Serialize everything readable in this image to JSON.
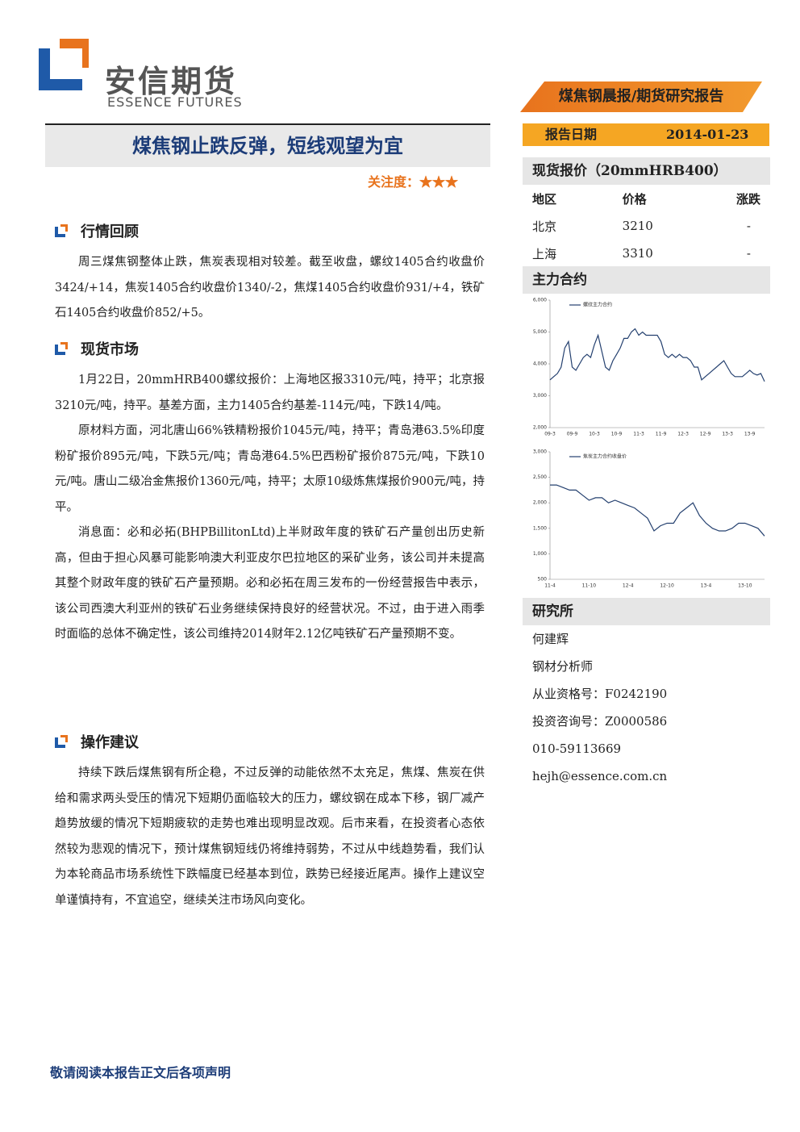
{
  "header": {
    "logo_cn": "安信期货",
    "logo_en": "ESSENCE FUTURES",
    "banner": "煤焦钢晨报/期货研究报告",
    "date_label": "报告日期",
    "date": "2014-01-23"
  },
  "title": "煤焦钢止跌反弹，短线观望为宜",
  "attention": "关注度：★★★",
  "sections": [
    {
      "heading": "行情回顾",
      "paragraphs": [
        "周三煤焦钢整体止跌，焦炭表现相对较差。截至收盘，螺纹1405合约收盘价3424/+14，焦炭1405合约收盘价1340/-2，焦煤1405合约收盘价931/+4，铁矿石1405合约收盘价852/+5。"
      ]
    },
    {
      "heading": "现货市场",
      "paragraphs": [
        "1月22日，20mmHRB400螺纹报价：上海地区报3310元/吨，持平；北京报3210元/吨，持平。基差方面，主力1405合约基差-114元/吨，下跌14/吨。",
        "原材料方面，河北唐山66%铁精粉报价1045元/吨，持平；青岛港63.5%印度粉矿报价895元/吨，下跌5元/吨；青岛港64.5%巴西粉矿报价875元/吨，下跌10元/吨。唐山二级冶金焦报价1360元/吨，持平；太原10级炼焦煤报价900元/吨，持平。",
        "消息面：必和必拓(BHPBillitonLtd)上半财政年度的铁矿石产量创出历史新高，但由于担心风暴可能影响澳大利亚皮尔巴拉地区的采矿业务，该公司并未提高其整个财政年度的铁矿石产量预期。必和必拓在周三发布的一份经营报告中表示，该公司西澳大利亚州的铁矿石业务继续保持良好的经营状况。不过，由于进入雨季时面临的总体不确定性，该公司维持2014财年2.12亿吨铁矿石产量预期不变。"
      ]
    },
    {
      "heading": "操作建议",
      "paragraphs": [
        "持续下跌后煤焦钢有所企稳，不过反弹的动能依然不太充足，焦煤、焦炭在供给和需求两头受压的情况下短期仍面临较大的压力，螺纹钢在成本下移，钢厂减产趋势放缓的情况下短期疲软的走势也难出现明显改观。后市来看，在投资者心态依然较为悲观的情况下，预计煤焦钢短线仍将维持弱势，不过从中线趋势看，我们认为本轮商品市场系统性下跌幅度已经基本到位，跌势已经接近尾声。操作上建议空单谨慎持有，不宜追空，继续关注市场风向变化。"
      ]
    }
  ],
  "sidebar": {
    "spot_title": "现货报价（20mmHRB400）",
    "table": {
      "header": [
        "地区",
        "价格",
        "涨跌"
      ],
      "rows": [
        [
          "北京",
          "3210",
          "-"
        ],
        [
          "上海",
          "3310",
          "-"
        ]
      ]
    },
    "contract_title": "主力合约",
    "research_title": "研究所",
    "research": [
      "何建辉",
      "钢材分析师",
      "从业资格号：F0242190",
      "投资咨询号：Z0000586",
      "010-59113669",
      "hejh@essence.com.cn"
    ]
  },
  "chart_data": [
    {
      "type": "line",
      "categories": [
        "09-3",
        null,
        null,
        null,
        null,
        null,
        "09-9",
        null,
        null,
        null,
        null,
        null,
        "10-3",
        null,
        null,
        null,
        null,
        null,
        "10-9",
        null,
        null,
        null,
        null,
        null,
        "11-3",
        null,
        null,
        null,
        null,
        null,
        "11-9",
        null,
        null,
        null,
        null,
        null,
        "12-3",
        null,
        null,
        null,
        null,
        null,
        "12-9",
        null,
        null,
        null,
        null,
        null,
        "13-3",
        null,
        null,
        null,
        null,
        null,
        "13-9",
        null,
        null,
        null,
        null
      ],
      "series": [
        {
          "name": "螺纹主力合约",
          "color": "#24406f",
          "values": [
            3500,
            3600,
            3700,
            3900,
            4500,
            4700,
            3900,
            3800,
            4000,
            4200,
            4300,
            4200,
            4600,
            4900,
            4400,
            3900,
            3800,
            4100,
            4300,
            4500,
            4800,
            4800,
            5000,
            5100,
            4900,
            5000,
            4900,
            4900,
            4900,
            4900,
            4700,
            4300,
            4200,
            4300,
            4200,
            4300,
            4200,
            4200,
            4100,
            3900,
            3900,
            3500,
            3600,
            3700,
            3800,
            3900,
            4000,
            4100,
            3900,
            3700,
            3600,
            3600,
            3600,
            3700,
            3800,
            3700,
            3650,
            3700,
            3450
          ]
        }
      ],
      "ylim": [
        2000,
        6000
      ],
      "yticks": [
        {
          "value": 2000,
          "label": "2,000"
        },
        {
          "value": 3000,
          "label": "3,000"
        },
        {
          "value": 4000,
          "label": "4,000"
        },
        {
          "value": 5000,
          "label": "5,000"
        },
        {
          "value": 6000,
          "label": "6,000"
        }
      ]
    },
    {
      "type": "line",
      "categories": [
        "11-4",
        null,
        null,
        null,
        null,
        null,
        "11-10",
        null,
        null,
        null,
        null,
        null,
        "12-4",
        null,
        null,
        null,
        null,
        null,
        "12-10",
        null,
        null,
        null,
        null,
        null,
        "13-4",
        null,
        null,
        null,
        null,
        null,
        "13-10",
        null,
        null,
        null
      ],
      "series": [
        {
          "name": "焦炭主力合约收盘价",
          "color": "#24406f",
          "values": [
            2350,
            2350,
            2300,
            2250,
            2250,
            2150,
            2050,
            2100,
            2100,
            2000,
            2050,
            2000,
            1950,
            1900,
            1800,
            1700,
            1450,
            1550,
            1600,
            1600,
            1800,
            1900,
            2000,
            1750,
            1600,
            1500,
            1450,
            1450,
            1500,
            1600,
            1600,
            1550,
            1500,
            1350
          ]
        }
      ],
      "ylim": [
        500,
        3000
      ],
      "yticks": [
        500,
        {
          "value": 1000,
          "label": "1,000"
        },
        {
          "value": 1500,
          "label": "1,500"
        },
        {
          "value": 2000,
          "label": "2,000"
        },
        {
          "value": 2500,
          "label": "2,500"
        },
        {
          "value": 3000,
          "label": "3,000"
        }
      ]
    }
  ],
  "footer": "敬请阅读本报告正文后各项声明"
}
